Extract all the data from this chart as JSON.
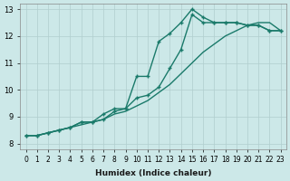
{
  "xlabel": "Humidex (Indice chaleur)",
  "ylabel": "",
  "bg_color": "#cce8e8",
  "grid_color": "#b0cece",
  "line_color": "#1a7a6a",
  "x_values": [
    0,
    1,
    2,
    3,
    4,
    5,
    6,
    7,
    8,
    9,
    10,
    11,
    12,
    13,
    14,
    15,
    16,
    17,
    18,
    19,
    20,
    21,
    22,
    23
  ],
  "curve1": [
    8.3,
    8.3,
    8.4,
    8.5,
    8.6,
    8.8,
    8.8,
    9.1,
    9.3,
    9.3,
    10.5,
    10.5,
    11.8,
    12.1,
    12.5,
    13.0,
    12.7,
    12.5,
    12.5,
    12.5,
    12.4,
    12.4,
    12.2,
    12.2
  ],
  "curve2": [
    8.3,
    8.3,
    8.4,
    8.5,
    8.6,
    8.8,
    8.8,
    8.9,
    9.2,
    9.3,
    9.7,
    9.8,
    10.1,
    10.8,
    11.5,
    12.8,
    12.5,
    12.5,
    12.5,
    12.5,
    12.4,
    12.4,
    12.2,
    12.2
  ],
  "curve3": [
    8.3,
    8.3,
    8.4,
    8.5,
    8.6,
    8.7,
    8.8,
    8.9,
    9.1,
    9.2,
    9.4,
    9.6,
    9.9,
    10.2,
    10.6,
    11.0,
    11.4,
    11.7,
    12.0,
    12.2,
    12.4,
    12.5,
    12.5,
    12.2
  ],
  "xlim": [
    -0.5,
    23.5
  ],
  "ylim": [
    7.8,
    13.2
  ],
  "yticks": [
    8,
    9,
    10,
    11,
    12,
    13
  ],
  "xticks": [
    0,
    1,
    2,
    3,
    4,
    5,
    6,
    7,
    8,
    9,
    10,
    11,
    12,
    13,
    14,
    15,
    16,
    17,
    18,
    19,
    20,
    21,
    22,
    23
  ]
}
